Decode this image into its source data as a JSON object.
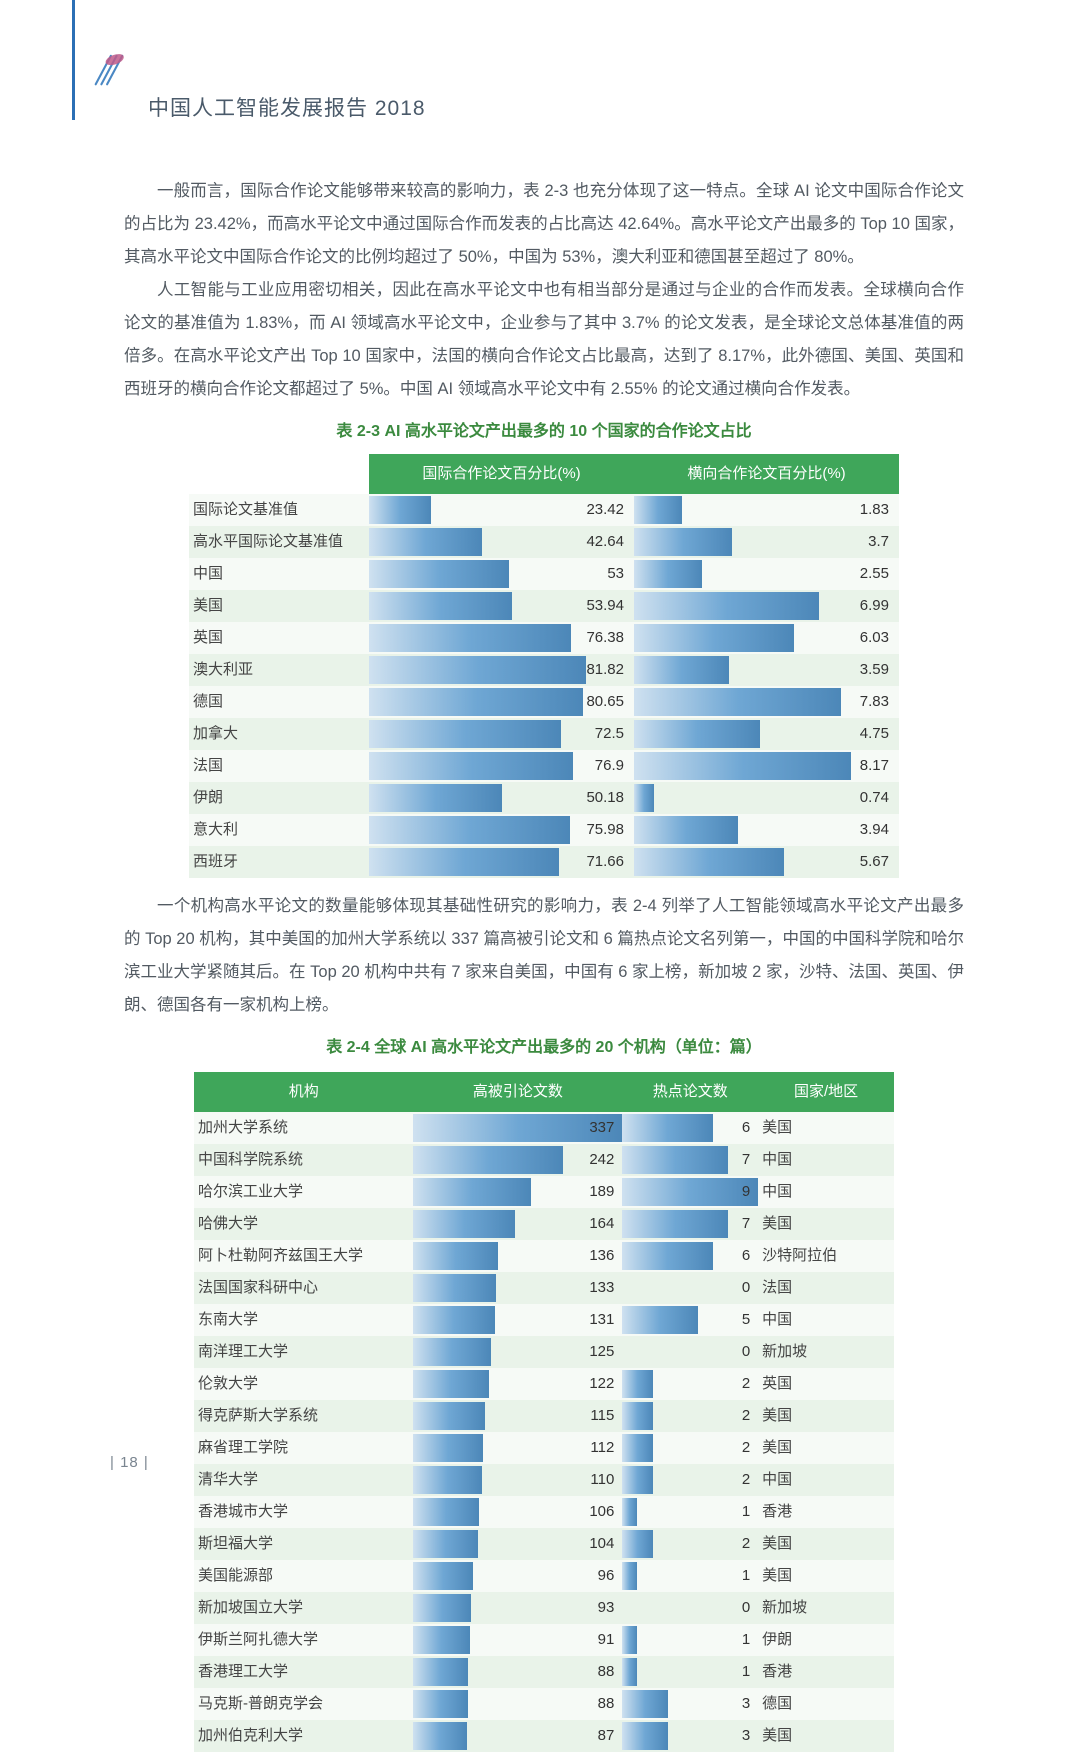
{
  "header": {
    "title": "中国人工智能发展报告 2018"
  },
  "paragraphs": {
    "p1": "一般而言，国际合作论文能够带来较高的影响力，表 2-3 也充分体现了这一特点。全球 AI 论文中国际合作论文的占比为 23.42%，而高水平论文中通过国际合作而发表的占比高达 42.64%。高水平论文产出最多的 Top 10 国家，其高水平论文中国际合作论文的比例均超过了 50%，中国为 53%，澳大利亚和德国甚至超过了 80%。",
    "p2": "人工智能与工业应用密切相关，因此在高水平论文中也有相当部分是通过与企业的合作而发表。全球横向合作论文的基准值为 1.83%，而 AI 领域高水平论文中，企业参与了其中 3.7% 的论文发表，是全球论文总体基准值的两倍多。在高水平论文产出 Top 10 国家中，法国的横向合作论文占比最高，达到了 8.17%，此外德国、美国、英国和西班牙的横向合作论文都超过了 5%。中国 AI 领域高水平论文中有 2.55% 的论文通过横向合作发表。",
    "p3": "一个机构高水平论文的数量能够体现其基础性研究的影响力，表 2-4 列举了人工智能领域高水平论文产出最多的 Top 20 机构，其中美国的加州大学系统以 337 篇高被引论文和 6 篇热点论文名列第一，中国的中国科学院和哈尔滨工业大学紧随其后。在 Top 20 机构中共有 7 家来自美国，中国有 6 家上榜，新加坡 2 家，沙特、法国、英国、伊朗、德国各有一家机构上榜。"
  },
  "table1": {
    "caption": "表 2-3  AI 高水平论文产出最多的 10 个国家的合作论文占比",
    "headers": [
      "",
      "国际合作论文百分比(%)",
      "横向合作论文百分比(%)"
    ],
    "max1": 100,
    "max2": 10,
    "bar_gradient": "linear-gradient(to right,#cfe1f0,#6fa7d4,#4c87b8)",
    "header_bg": "#3fa65a",
    "rows": [
      {
        "label": "国际论文基准值",
        "v1": 23.42,
        "v2": 1.83
      },
      {
        "label": "高水平国际论文基准值",
        "v1": 42.64,
        "v2": 3.7
      },
      {
        "label": "中国",
        "v1": 53,
        "v2": 2.55
      },
      {
        "label": "美国",
        "v1": 53.94,
        "v2": 6.99
      },
      {
        "label": "英国",
        "v1": 76.38,
        "v2": 6.03
      },
      {
        "label": "澳大利亚",
        "v1": 81.82,
        "v2": 3.59
      },
      {
        "label": "德国",
        "v1": 80.65,
        "v2": 7.83
      },
      {
        "label": "加拿大",
        "v1": 72.5,
        "v2": 4.75
      },
      {
        "label": "法国",
        "v1": 76.9,
        "v2": 8.17
      },
      {
        "label": "伊朗",
        "v1": 50.18,
        "v2": 0.74
      },
      {
        "label": "意大利",
        "v1": 75.98,
        "v2": 3.94
      },
      {
        "label": "西班牙",
        "v1": 71.66,
        "v2": 5.67
      }
    ]
  },
  "table2": {
    "caption": "表 2-4  全球 AI 高水平论文产出最多的 20 个机构（单位：篇）",
    "headers": [
      "机构",
      "高被引论文数",
      "热点论文数",
      "国家/地区"
    ],
    "max1": 337,
    "max2": 9,
    "rows": [
      {
        "inst": "加州大学系统",
        "v1": 337,
        "v2": 6,
        "region": "美国"
      },
      {
        "inst": "中国科学院系统",
        "v1": 242,
        "v2": 7,
        "region": "中国"
      },
      {
        "inst": "哈尔滨工业大学",
        "v1": 189,
        "v2": 9,
        "region": "中国"
      },
      {
        "inst": "哈佛大学",
        "v1": 164,
        "v2": 7,
        "region": "美国"
      },
      {
        "inst": "阿卜杜勒阿齐兹国王大学",
        "v1": 136,
        "v2": 6,
        "region": "沙特阿拉伯"
      },
      {
        "inst": "法国国家科研中心",
        "v1": 133,
        "v2": 0,
        "region": "法国"
      },
      {
        "inst": "东南大学",
        "v1": 131,
        "v2": 5,
        "region": "中国"
      },
      {
        "inst": "南洋理工大学",
        "v1": 125,
        "v2": 0,
        "region": "新加坡"
      },
      {
        "inst": "伦敦大学",
        "v1": 122,
        "v2": 2,
        "region": "英国"
      },
      {
        "inst": "得克萨斯大学系统",
        "v1": 115,
        "v2": 2,
        "region": "美国"
      },
      {
        "inst": "麻省理工学院",
        "v1": 112,
        "v2": 2,
        "region": "美国"
      },
      {
        "inst": "清华大学",
        "v1": 110,
        "v2": 2,
        "region": "中国"
      },
      {
        "inst": "香港城市大学",
        "v1": 106,
        "v2": 1,
        "region": "香港"
      },
      {
        "inst": "斯坦福大学",
        "v1": 104,
        "v2": 2,
        "region": "美国"
      },
      {
        "inst": "美国能源部",
        "v1": 96,
        "v2": 1,
        "region": "美国"
      },
      {
        "inst": "新加坡国立大学",
        "v1": 93,
        "v2": 0,
        "region": "新加坡"
      },
      {
        "inst": "伊斯兰阿扎德大学",
        "v1": 91,
        "v2": 1,
        "region": "伊朗"
      },
      {
        "inst": "香港理工大学",
        "v1": 88,
        "v2": 1,
        "region": "香港"
      },
      {
        "inst": "马克斯-普朗克学会",
        "v1": 88,
        "v2": 3,
        "region": "德国"
      },
      {
        "inst": "加州伯克利大学",
        "v1": 87,
        "v2": 3,
        "region": "美国"
      }
    ]
  },
  "page_number": "18",
  "colors": {
    "accent_blue": "#2b6fb5",
    "header_green": "#3fa65a",
    "caption_green": "#3b8a3f",
    "bar_start": "#cfe1f0",
    "bar_end": "#4c87b8",
    "row_even": "#e9f3e9",
    "row_odd": "#f6faf6",
    "text": "#525a62"
  }
}
